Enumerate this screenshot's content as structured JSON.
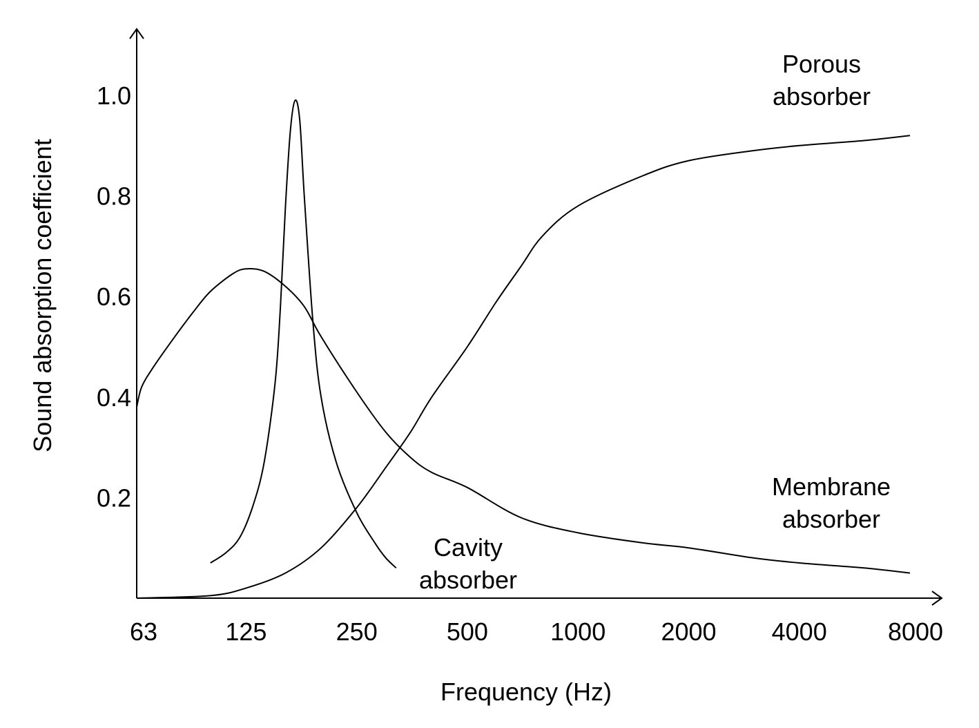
{
  "chart_data": {
    "type": "line",
    "xlabel": "Frequency (Hz)",
    "ylabel": "Sound absorption coefficient",
    "x_scale": "log2",
    "x_ticks": [
      "63",
      "125",
      "250",
      "500",
      "1000",
      "2000",
      "4000",
      "8000"
    ],
    "x_tick_values": [
      63,
      125,
      250,
      500,
      1000,
      2000,
      4000,
      8000
    ],
    "y_ticks": [
      "0.2",
      "0.4",
      "0.6",
      "0.8",
      "1.0"
    ],
    "y_tick_values": [
      0.2,
      0.4,
      0.6,
      0.8,
      1.0
    ],
    "xlim": [
      63,
      8000
    ],
    "ylim": [
      0,
      1.0
    ],
    "grid": false,
    "series": [
      {
        "name": "Membrane absorber",
        "label_lines": [
          "Membrane",
          "absorber"
        ],
        "x": [
          63,
          65,
          70,
          80,
          90,
          100,
          115,
          125,
          140,
          160,
          180,
          200,
          250,
          300,
          350,
          400,
          500,
          700,
          1000,
          1500,
          2000,
          3000,
          4000,
          6000,
          8000
        ],
        "y": [
          0.38,
          0.42,
          0.46,
          0.52,
          0.57,
          0.61,
          0.645,
          0.655,
          0.65,
          0.62,
          0.58,
          0.52,
          0.41,
          0.33,
          0.28,
          0.25,
          0.22,
          0.16,
          0.13,
          0.11,
          0.1,
          0.08,
          0.07,
          0.06,
          0.05
        ]
      },
      {
        "name": "Cavity absorber",
        "label_lines": [
          "Cavity",
          "absorber"
        ],
        "x": [
          100,
          110,
          120,
          130,
          140,
          150,
          155,
          160,
          165,
          170,
          175,
          180,
          190,
          200,
          220,
          250,
          280,
          300,
          320
        ],
        "y": [
          0.07,
          0.09,
          0.12,
          0.18,
          0.27,
          0.43,
          0.58,
          0.78,
          0.93,
          0.99,
          0.95,
          0.8,
          0.55,
          0.4,
          0.27,
          0.17,
          0.11,
          0.08,
          0.06
        ]
      },
      {
        "name": "Porous absorber",
        "label_lines": [
          "Porous",
          "absorber"
        ],
        "x": [
          63,
          100,
          125,
          160,
          200,
          250,
          300,
          350,
          400,
          500,
          600,
          700,
          800,
          1000,
          1500,
          2000,
          3000,
          4000,
          6000,
          8000
        ],
        "y": [
          0.0,
          0.005,
          0.02,
          0.05,
          0.1,
          0.18,
          0.26,
          0.33,
          0.4,
          0.5,
          0.59,
          0.66,
          0.72,
          0.78,
          0.84,
          0.87,
          0.89,
          0.9,
          0.91,
          0.92
        ]
      }
    ]
  }
}
